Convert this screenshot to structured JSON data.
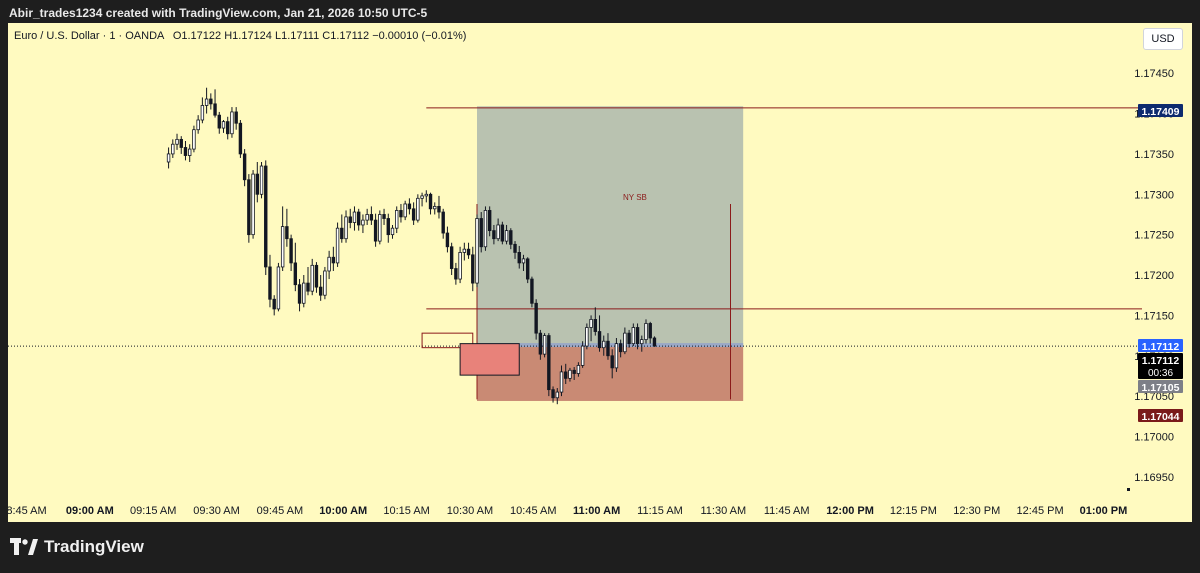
{
  "caption": "Abir_trades1234 created with TradingView.com, Jan 21, 2026 10:50 UTC-5",
  "legend": {
    "symbol": "Euro / U.S. Dollar · 1 · OANDA",
    "ohlc": "O1.17122 H1.17124 L1.17111 C1.17112 −0.00010 (−0.01%)"
  },
  "currency": "USD",
  "brand": "TradingView",
  "icons": {
    "logo": "tradingview-logo-icon"
  },
  "colors": {
    "background": "#fffac0",
    "candle": "#131722",
    "level_line": "#8b1a1a",
    "profit_zone": "#b9c2b0",
    "loss_zone": "#c98a74",
    "entry_label": "#2962ff",
    "target_label": "#0d2a6e",
    "stop_label": "#7a1a1a"
  },
  "chart_data": {
    "type": "candlestick",
    "ylim": [
      1.1693,
      1.17475
    ],
    "y_ticks": [
      "1.17450",
      "1.17400",
      "1.17350",
      "1.17300",
      "1.17250",
      "1.17200",
      "1.17150",
      "1.17100",
      "1.17050",
      "1.17000",
      "1.16950"
    ],
    "x_ticks": [
      "8:45 AM",
      "09:00 AM",
      "09:15 AM",
      "09:30 AM",
      "09:45 AM",
      "10:00 AM",
      "10:15 AM",
      "10:30 AM",
      "10:45 AM",
      "11:00 AM",
      "11:15 AM",
      "11:30 AM",
      "11:45 AM",
      "12:00 PM",
      "12:15 PM",
      "12:30 PM",
      "12:45 PM",
      "01:00 PM"
    ],
    "x_ticks_bold": [
      "09:00 AM",
      "10:00 AM",
      "11:00 AM",
      "12:00 PM",
      "01:00 PM"
    ],
    "price_labels": [
      {
        "id": "target",
        "text": "1.17409",
        "value": 1.17409
      },
      {
        "id": "entry",
        "text": "1.17112",
        "value": 1.17112
      },
      {
        "id": "last",
        "text": "1.17112",
        "value": 1.17112,
        "sub": "00:36"
      },
      {
        "id": "current",
        "text": "1.17105",
        "value": 1.17105
      },
      {
        "id": "stop",
        "text": "1.17044",
        "value": 1.17044
      }
    ],
    "annotations": [
      {
        "text": "NY SB",
        "time_min": 40
      }
    ],
    "levels": [
      {
        "name": "upper",
        "value": 1.17407,
        "from_min": -12
      },
      {
        "name": "lower",
        "value": 1.17158,
        "from_min": -12
      }
    ],
    "position": {
      "from_min": 0,
      "to_min": 63,
      "entry": 1.17112,
      "target": 1.17409,
      "stop": 1.17044
    },
    "vertical_lines": [
      {
        "time_min": 0,
        "top": 1.17288,
        "bottom": 1.17046
      },
      {
        "time_min": 60,
        "top": 1.17288,
        "bottom": 1.17046
      }
    ],
    "candles_start_min": -73,
    "candles": [
      [
        1.1734,
        1.17358,
        1.17332,
        1.1735
      ],
      [
        1.1735,
        1.17368,
        1.17345,
        1.17362
      ],
      [
        1.17362,
        1.17375,
        1.17355,
        1.17368
      ],
      [
        1.17368,
        1.17372,
        1.1735,
        1.17358
      ],
      [
        1.17358,
        1.17366,
        1.17342,
        1.17348
      ],
      [
        1.17348,
        1.17362,
        1.1734,
        1.17356
      ],
      [
        1.17356,
        1.17385,
        1.17352,
        1.1738
      ],
      [
        1.1738,
        1.17398,
        1.17375,
        1.17392
      ],
      [
        1.17392,
        1.1742,
        1.17388,
        1.1741
      ],
      [
        1.1741,
        1.17432,
        1.174,
        1.17418
      ],
      [
        1.17418,
        1.17425,
        1.17405,
        1.17412
      ],
      [
        1.17412,
        1.1743,
        1.17395,
        1.17398
      ],
      [
        1.17398,
        1.17402,
        1.17375,
        1.17382
      ],
      [
        1.17382,
        1.17392,
        1.17376,
        1.1739
      ],
      [
        1.1739,
        1.17396,
        1.17368,
        1.17375
      ],
      [
        1.17375,
        1.17408,
        1.1737,
        1.17402
      ],
      [
        1.17402,
        1.17408,
        1.1738,
        1.17388
      ],
      [
        1.17388,
        1.17392,
        1.17345,
        1.1735
      ],
      [
        1.1735,
        1.17356,
        1.1731,
        1.17318
      ],
      [
        1.17318,
        1.17325,
        1.1724,
        1.1725
      ],
      [
        1.1725,
        1.1733,
        1.17245,
        1.17325
      ],
      [
        1.17325,
        1.1734,
        1.1729,
        1.173
      ],
      [
        1.173,
        1.1734,
        1.17295,
        1.17335
      ],
      [
        1.17335,
        1.17342,
        1.172,
        1.1721
      ],
      [
        1.1721,
        1.17225,
        1.1716,
        1.1717
      ],
      [
        1.1717,
        1.17175,
        1.1715,
        1.17158
      ],
      [
        1.17158,
        1.17215,
        1.17155,
        1.1721
      ],
      [
        1.1721,
        1.17285,
        1.17205,
        1.1726
      ],
      [
        1.1726,
        1.17282,
        1.17235,
        1.17245
      ],
      [
        1.17245,
        1.1725,
        1.17205,
        1.17215
      ],
      [
        1.17215,
        1.1724,
        1.1718,
        1.17188
      ],
      [
        1.17188,
        1.17195,
        1.17155,
        1.17165
      ],
      [
        1.17165,
        1.172,
        1.1716,
        1.1719
      ],
      [
        1.1719,
        1.1721,
        1.17175,
        1.1718
      ],
      [
        1.1718,
        1.1722,
        1.17175,
        1.17212
      ],
      [
        1.17212,
        1.17216,
        1.17178,
        1.17185
      ],
      [
        1.17185,
        1.172,
        1.17168,
        1.17175
      ],
      [
        1.17175,
        1.1721,
        1.1717,
        1.17205
      ],
      [
        1.17205,
        1.1723,
        1.17195,
        1.17222
      ],
      [
        1.17222,
        1.17235,
        1.17205,
        1.17215
      ],
      [
        1.17215,
        1.17265,
        1.1721,
        1.17258
      ],
      [
        1.17258,
        1.17275,
        1.1724,
        1.17245
      ],
      [
        1.17245,
        1.1728,
        1.1724,
        1.17272
      ],
      [
        1.17272,
        1.17282,
        1.17258,
        1.17265
      ],
      [
        1.17265,
        1.17285,
        1.17255,
        1.17278
      ],
      [
        1.17278,
        1.17282,
        1.17255,
        1.17262
      ],
      [
        1.17262,
        1.17275,
        1.17252,
        1.17268
      ],
      [
        1.17268,
        1.17282,
        1.17262,
        1.17275
      ],
      [
        1.17275,
        1.17285,
        1.17262,
        1.17268
      ],
      [
        1.17268,
        1.17276,
        1.17235,
        1.17242
      ],
      [
        1.17242,
        1.1728,
        1.17238,
        1.17275
      ],
      [
        1.17275,
        1.17282,
        1.17262,
        1.1727
      ],
      [
        1.1727,
        1.17276,
        1.1724,
        1.1725
      ],
      [
        1.1725,
        1.17262,
        1.17245,
        1.17258
      ],
      [
        1.17258,
        1.17285,
        1.17252,
        1.1728
      ],
      [
        1.1728,
        1.17288,
        1.17265,
        1.17272
      ],
      [
        1.17272,
        1.17292,
        1.17268,
        1.17288
      ],
      [
        1.17288,
        1.17295,
        1.17275,
        1.17282
      ],
      [
        1.17282,
        1.1729,
        1.17262,
        1.17268
      ],
      [
        1.17268,
        1.173,
        1.17265,
        1.17295
      ],
      [
        1.17295,
        1.17302,
        1.17285,
        1.17298
      ],
      [
        1.17298,
        1.17305,
        1.1729,
        1.173
      ],
      [
        1.173,
        1.17302,
        1.17275,
        1.17282
      ],
      [
        1.17282,
        1.1729,
        1.17275,
        1.17285
      ],
      [
        1.17285,
        1.17298,
        1.1727,
        1.17278
      ],
      [
        1.17278,
        1.17282,
        1.17245,
        1.17252
      ],
      [
        1.17252,
        1.1726,
        1.17228,
        1.17235
      ],
      [
        1.17235,
        1.1724,
        1.172,
        1.17208
      ],
      [
        1.17208,
        1.17215,
        1.17188,
        1.17195
      ],
      [
        1.17195,
        1.17235,
        1.1719,
        1.17228
      ],
      [
        1.17228,
        1.1724,
        1.17218,
        1.17232
      ],
      [
        1.17232,
        1.1724,
        1.1722,
        1.17225
      ],
      [
        1.17225,
        1.17235,
        1.1718,
        1.1719
      ],
      [
        1.1719,
        1.17275,
        1.17185,
        1.1727
      ],
      [
        1.1727,
        1.17278,
        1.17228,
        1.17235
      ],
      [
        1.17235,
        1.17285,
        1.1723,
        1.1728
      ],
      [
        1.1728,
        1.17285,
        1.17248,
        1.17255
      ],
      [
        1.17255,
        1.17262,
        1.17238,
        1.17245
      ],
      [
        1.17245,
        1.1727,
        1.17242,
        1.17262
      ],
      [
        1.17262,
        1.17266,
        1.17238,
        1.17242
      ],
      [
        1.17242,
        1.17262,
        1.17238,
        1.17255
      ],
      [
        1.17255,
        1.17258,
        1.17232,
        1.17238
      ],
      [
        1.17238,
        1.17242,
        1.1722,
        1.17228
      ],
      [
        1.17228,
        1.17236,
        1.17208,
        1.17215
      ],
      [
        1.17215,
        1.17225,
        1.17205,
        1.1722
      ],
      [
        1.1722,
        1.17222,
        1.1719,
        1.17195
      ],
      [
        1.17195,
        1.17198,
        1.1716,
        1.17165
      ],
      [
        1.17165,
        1.1717,
        1.1712,
        1.17128
      ],
      [
        1.17128,
        1.17132,
        1.17095,
        1.17102
      ],
      [
        1.17102,
        1.17128,
        1.17098,
        1.17125
      ],
      [
        1.17125,
        1.17128,
        1.1705,
        1.17058
      ],
      [
        1.17058,
        1.17062,
        1.17042,
        1.17048
      ],
      [
        1.17048,
        1.1706,
        1.1704,
        1.17055
      ],
      [
        1.17055,
        1.17088,
        1.1705,
        1.1708
      ],
      [
        1.1708,
        1.1709,
        1.17065,
        1.17072
      ],
      [
        1.17072,
        1.17085,
        1.17068,
        1.17082
      ],
      [
        1.17082,
        1.17086,
        1.1707,
        1.17078
      ],
      [
        1.17078,
        1.17092,
        1.17074,
        1.17088
      ],
      [
        1.17088,
        1.17118,
        1.17085,
        1.17112
      ],
      [
        1.17112,
        1.1714,
        1.17108,
        1.17135
      ],
      [
        1.17135,
        1.1715,
        1.17118,
        1.17145
      ],
      [
        1.17145,
        1.1716,
        1.17125,
        1.1713
      ],
      [
        1.1713,
        1.1715,
        1.17105,
        1.1711
      ],
      [
        1.1711,
        1.17125,
        1.171,
        1.17118
      ],
      [
        1.17118,
        1.17128,
        1.17095,
        1.171
      ],
      [
        1.171,
        1.17108,
        1.17072,
        1.17085
      ],
      [
        1.17085,
        1.17122,
        1.1708,
        1.17115
      ],
      [
        1.17115,
        1.1712,
        1.17098,
        1.17105
      ],
      [
        1.17105,
        1.17135,
        1.17102,
        1.17128
      ],
      [
        1.17128,
        1.17132,
        1.1711,
        1.17115
      ],
      [
        1.17115,
        1.1714,
        1.17112,
        1.17135
      ],
      [
        1.17135,
        1.1714,
        1.17108,
        1.17115
      ],
      [
        1.17115,
        1.17125,
        1.17105,
        1.1712
      ],
      [
        1.1712,
        1.17145,
        1.17115,
        1.1714
      ],
      [
        1.1714,
        1.17142,
        1.17115,
        1.17122
      ],
      [
        1.17122,
        1.17124,
        1.17111,
        1.17112
      ]
    ]
  }
}
